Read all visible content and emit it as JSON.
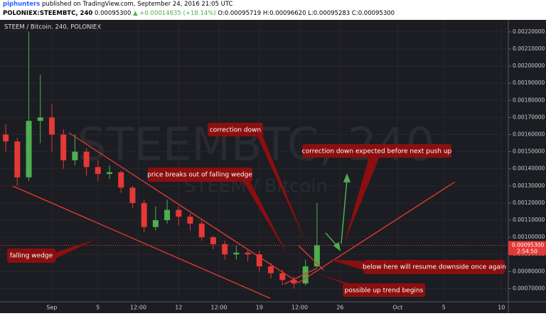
{
  "header": {
    "author": "piphunters",
    "published": "published on TradingView.com, September 24, 2016 21:05 UTC",
    "symbol": "POLONIEX:STEEMBTC, 240",
    "price": "0.00095300",
    "change": "▲ +0.00014635 (+18.14%)",
    "open": "O:0.00095719",
    "high": "H:0.00096620",
    "low": "L:0.00095283",
    "close": "C:0.00095300"
  },
  "chart_data": {
    "type": "candlestick",
    "title": "STEEM / Bitcoin, 240, POLONIEX",
    "watermark": "STEEMBTC, 240",
    "watermark_subtitle": "STEEM / Bitcoin",
    "x": [
      -4,
      -3,
      -2,
      -1,
      0,
      1,
      2,
      3,
      4,
      5,
      6,
      7,
      8,
      9,
      10,
      11,
      12,
      13,
      14,
      15,
      16,
      17,
      18,
      19,
      20,
      21,
      22,
      23
    ],
    "open": [
      0.0016,
      0.00156,
      0.00135,
      0.00168,
      0.0017,
      0.0016,
      0.00145,
      0.0015,
      0.00141,
      0.00137,
      0.00138,
      0.00129,
      0.0012,
      0.00106,
      0.0011,
      0.00116,
      0.00112,
      0.00108,
      0.001,
      0.00096,
      0.0009,
      0.00091,
      0.0009,
      0.00083,
      0.00079,
      0.00075,
      0.00073,
      0.00083
    ],
    "high": [
      0.00166,
      0.00158,
      0.0022,
      0.00195,
      0.00178,
      0.00163,
      0.0016,
      0.00152,
      0.00145,
      0.00142,
      0.00139,
      0.0013,
      0.00122,
      0.00118,
      0.00122,
      0.00118,
      0.00114,
      0.0011,
      0.00101,
      0.00098,
      0.00095,
      0.00093,
      0.00092,
      0.00085,
      0.00081,
      0.00077,
      0.00087,
      0.0012
    ],
    "low": [
      0.0015,
      0.0013,
      0.00133,
      0.00155,
      0.0015,
      0.0014,
      0.00142,
      0.00136,
      0.00133,
      0.00134,
      0.00126,
      0.00117,
      0.00103,
      0.00104,
      0.00108,
      0.00107,
      0.00104,
      0.00098,
      0.00093,
      0.00087,
      0.00087,
      0.00086,
      0.0008,
      0.00076,
      0.00072,
      0.0007,
      0.00072,
      0.00082
    ],
    "close": [
      0.00156,
      0.00135,
      0.00168,
      0.0017,
      0.0016,
      0.00145,
      0.0015,
      0.00141,
      0.00137,
      0.00138,
      0.00129,
      0.0012,
      0.00106,
      0.0011,
      0.00116,
      0.00112,
      0.00108,
      0.001,
      0.00096,
      0.0009,
      0.00091,
      0.0009,
      0.00083,
      0.00079,
      0.00075,
      0.00073,
      0.00083,
      0.000953
    ],
    "up_color": "#4caf50",
    "down_color": "#e53935",
    "xlim": [
      -4.5,
      39.6
    ],
    "xticks": [
      {
        "value": 0,
        "label": "Sep"
      },
      {
        "value": 4,
        "label": "5"
      },
      {
        "value": 7.5,
        "label": "12:00"
      },
      {
        "value": 11,
        "label": "12"
      },
      {
        "value": 14.5,
        "label": "12:00"
      },
      {
        "value": 18,
        "label": "19"
      },
      {
        "value": 21.5,
        "label": "12:00"
      },
      {
        "value": 25,
        "label": "26"
      },
      {
        "value": 30,
        "label": "Oct"
      },
      {
        "value": 34,
        "label": "5"
      },
      {
        "value": 39,
        "label": "10"
      }
    ],
    "ylim": [
      0.000623,
      0.00227
    ],
    "yticks": [
      {
        "value": 0.0022,
        "label": "0.00220000"
      },
      {
        "value": 0.0021,
        "label": "0.00210000"
      },
      {
        "value": 0.002,
        "label": "0.00200000"
      },
      {
        "value": 0.0019,
        "label": "0.00190000"
      },
      {
        "value": 0.0018,
        "label": "0.00180000"
      },
      {
        "value": 0.0017,
        "label": "0.00170000"
      },
      {
        "value": 0.0016,
        "label": "0.00160000"
      },
      {
        "value": 0.0015,
        "label": "0.00150000"
      },
      {
        "value": 0.0014,
        "label": "0.00140000"
      },
      {
        "value": 0.0013,
        "label": "0.00130000"
      },
      {
        "value": 0.0012,
        "label": "0.00120000"
      },
      {
        "value": 0.0011,
        "label": "0.00110000"
      },
      {
        "value": 0.001,
        "label": "0.00100000"
      },
      {
        "value": 0.0009,
        "label": "0.00090000"
      },
      {
        "value": 0.0008,
        "label": "0.00080000"
      },
      {
        "value": 0.0007,
        "label": "0.00070000"
      }
    ],
    "last_price": {
      "value": 0.000953,
      "label": "0.00095300"
    },
    "countdown": "2:54:50",
    "annotations": [
      "falling wedge",
      "price breaks out of falling wedge",
      "correction down",
      "correction down expected before next push up",
      "below here will resume downside once again",
      "possible up trend begins"
    ]
  }
}
